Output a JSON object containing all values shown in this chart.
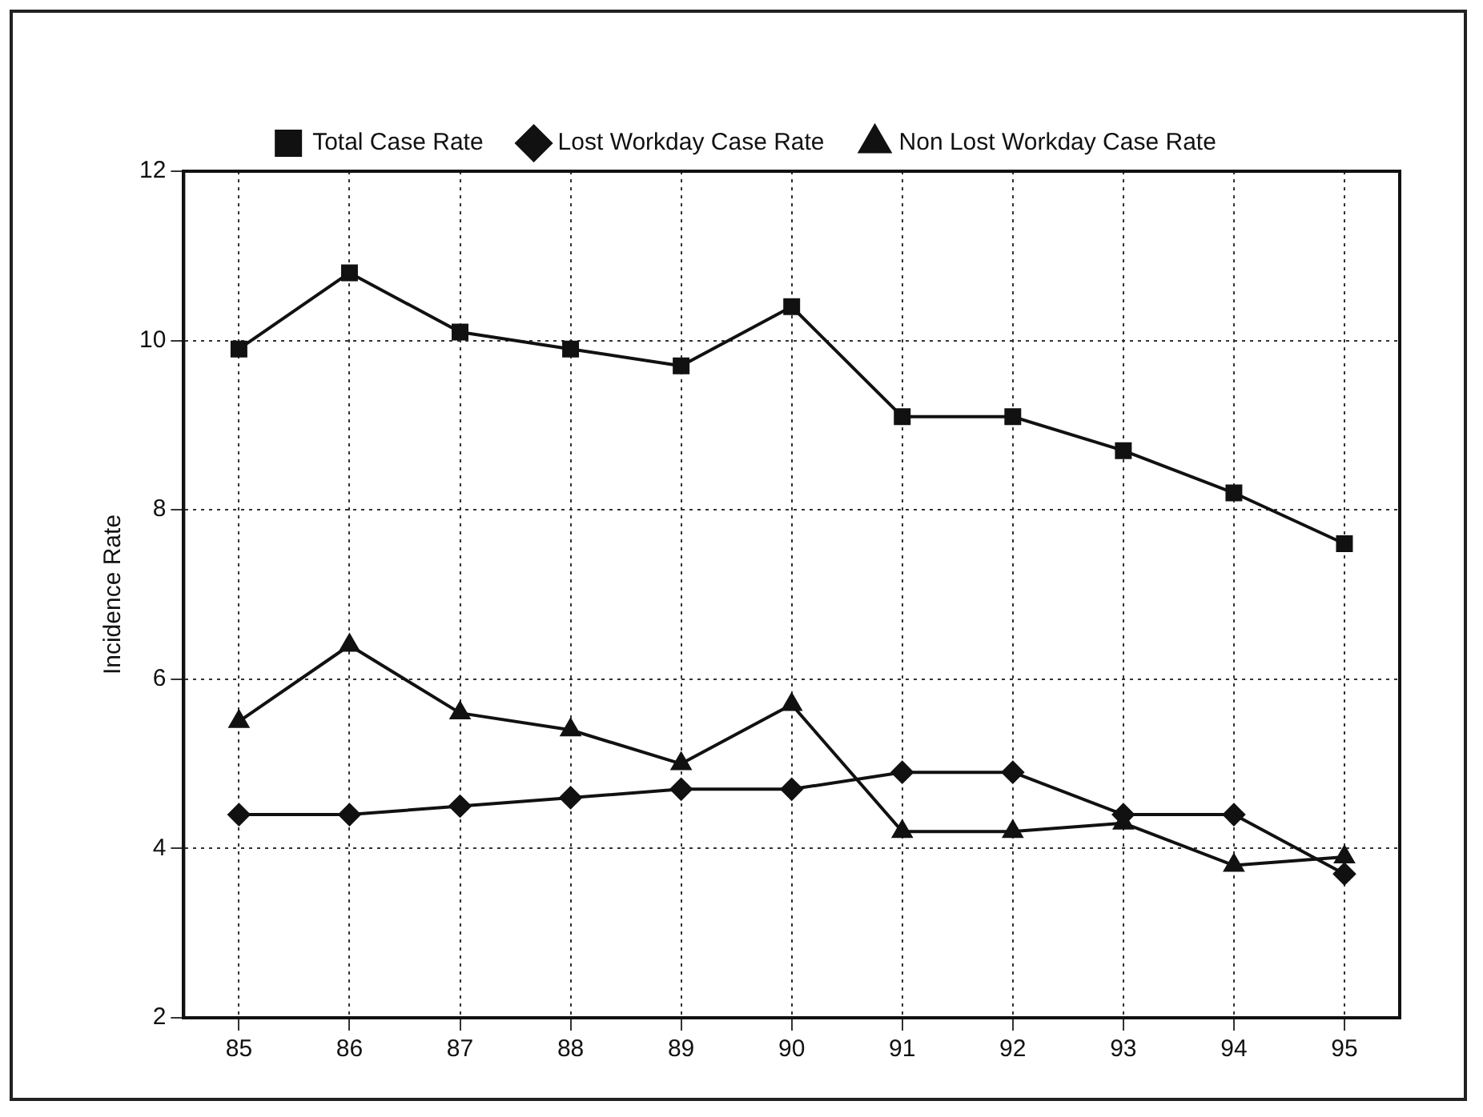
{
  "chart_data": {
    "type": "line",
    "ylabel": "Incidence Rate",
    "categories": [
      "85",
      "86",
      "87",
      "88",
      "89",
      "90",
      "91",
      "92",
      "93",
      "94",
      "95"
    ],
    "series": [
      {
        "name": "Total Case Rate",
        "color": "#111111",
        "marker": "square",
        "values": [
          9.9,
          10.8,
          10.1,
          9.9,
          9.7,
          10.4,
          9.1,
          9.1,
          8.7,
          8.2,
          7.6
        ]
      },
      {
        "name": "Lost Workday Case Rate",
        "color": "#111111",
        "marker": "diamond",
        "values": [
          4.4,
          4.4,
          4.5,
          4.6,
          4.7,
          4.7,
          4.9,
          4.9,
          4.4,
          4.4,
          3.7
        ]
      },
      {
        "name": "Non Lost Workday Case Rate",
        "color": "#111111",
        "marker": "triangle",
        "values": [
          5.5,
          6.4,
          5.6,
          5.4,
          5.0,
          5.7,
          4.2,
          4.2,
          4.3,
          3.8,
          3.9
        ]
      }
    ],
    "ylim": [
      2,
      12
    ],
    "yticks": [
      2,
      4,
      6,
      8,
      10,
      12
    ],
    "grid": true,
    "legend": "top",
    "line_style": "solid"
  }
}
